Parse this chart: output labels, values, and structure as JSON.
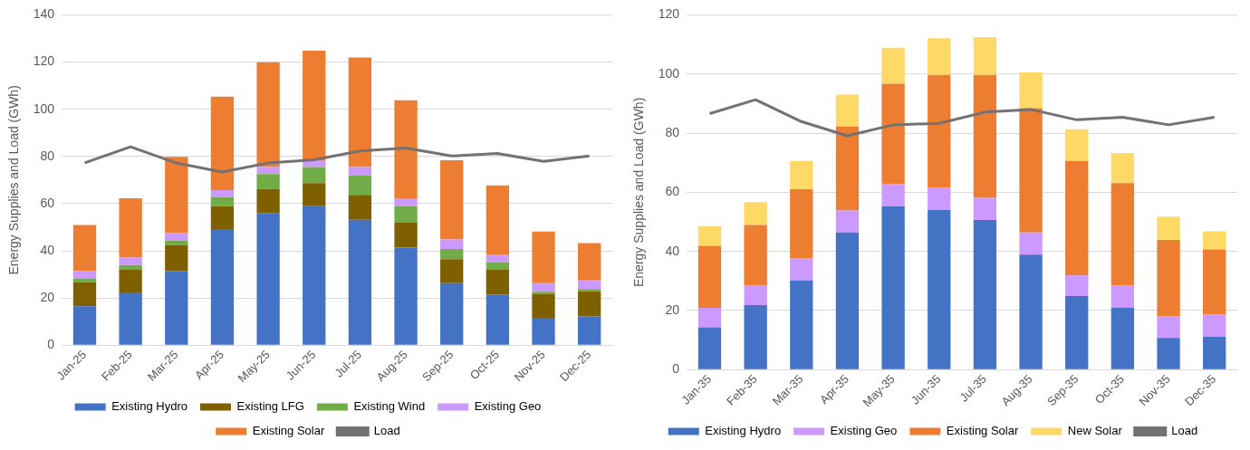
{
  "chart_data": [
    {
      "type": "bar",
      "stacked": true,
      "ylabel": "Energy Supplies and Load (GWh)",
      "ylim": [
        0,
        140
      ],
      "yticks": [
        0,
        20,
        40,
        60,
        80,
        100,
        120,
        140
      ],
      "grid": "y",
      "legend": "bottom",
      "marker": "none",
      "categories": [
        "Jan-25",
        "Feb-25",
        "Mar-25",
        "Apr-25",
        "May-25",
        "Jun-25",
        "Jul-25",
        "Aug-25",
        "Sep-25",
        "Oct-25",
        "Nov-25",
        "Dec-25"
      ],
      "series": [
        {
          "name": "Existing Hydro",
          "color": "#4472c4",
          "values": [
            16.5,
            22.4,
            31.5,
            49.2,
            56.0,
            58.9,
            53.2,
            41.4,
            26.3,
            21.5,
            11.6,
            12.2
          ]
        },
        {
          "name": "Existing LFG",
          "color": "#7f6000",
          "values": [
            10.2,
            9.8,
            10.9,
            9.7,
            10.2,
            9.8,
            10.5,
            10.7,
            10.2,
            10.7,
            10.2,
            10.7
          ]
        },
        {
          "name": "Existing Wind",
          "color": "#70ad47",
          "values": [
            1.4,
            1.8,
            1.8,
            3.9,
            6.3,
            6.8,
            8.4,
            6.8,
            4.3,
            2.9,
            0.9,
            0.9
          ]
        },
        {
          "name": "Existing Geo",
          "color": "#cc99ff",
          "values": [
            3.4,
            3.1,
            3.4,
            2.9,
            3.0,
            2.9,
            3.4,
            3.4,
            4.0,
            3.4,
            3.6,
            3.9
          ]
        },
        {
          "name": "Existing Solar",
          "color": "#ed7d31",
          "values": [
            19.5,
            25.2,
            32.2,
            39.6,
            44.4,
            46.4,
            46.4,
            41.5,
            33.6,
            29.2,
            21.9,
            15.6
          ]
        },
        {
          "name": "Load",
          "type": "line",
          "color": "#767171",
          "values": [
            77.3,
            84.1,
            77.2,
            73.4,
            77.2,
            78.6,
            82.3,
            83.6,
            80.2,
            81.3,
            77.9,
            80.2
          ]
        }
      ]
    },
    {
      "type": "bar",
      "stacked": true,
      "ylabel": "Energy Supplies and Load (GWh)",
      "ylim": [
        0,
        120
      ],
      "yticks": [
        0,
        20,
        40,
        60,
        80,
        100,
        120
      ],
      "grid": "y",
      "legend": "bottom",
      "marker": "none",
      "categories": [
        "Jan-35",
        "Feb-35",
        "Mar-35",
        "Apr-35",
        "May-35",
        "Jun-35",
        "Jul-35",
        "Aug-35",
        "Sep-35",
        "Oct-35",
        "Nov-35",
        "Dec-35"
      ],
      "series": [
        {
          "name": "Existing Hydro",
          "color": "#4472c4",
          "values": [
            14.3,
            21.8,
            30.2,
            46.4,
            55.2,
            54.0,
            50.6,
            38.9,
            24.9,
            21.0,
            10.7,
            11.1
          ]
        },
        {
          "name": "Existing Geo",
          "color": "#cc99ff",
          "values": [
            6.6,
            6.7,
            7.5,
            7.4,
            7.5,
            7.5,
            7.5,
            7.5,
            7.0,
            7.5,
            7.4,
            7.5
          ]
        },
        {
          "name": "Existing Solar",
          "color": "#ed7d31",
          "values": [
            21.0,
            20.4,
            23.3,
            28.4,
            34.0,
            38.2,
            41.6,
            42.0,
            38.7,
            34.6,
            25.8,
            22.1
          ]
        },
        {
          "name": "New Solar",
          "color": "#ffd966",
          "values": [
            6.6,
            7.8,
            9.6,
            10.8,
            12.2,
            12.4,
            12.8,
            12.1,
            10.7,
            10.2,
            7.9,
            6.1
          ]
        },
        {
          "name": "Load",
          "type": "line",
          "color": "#767171",
          "values": [
            86.6,
            91.3,
            83.9,
            79.1,
            82.8,
            83.3,
            87.1,
            88.0,
            84.5,
            85.4,
            82.8,
            85.4
          ]
        }
      ]
    }
  ]
}
